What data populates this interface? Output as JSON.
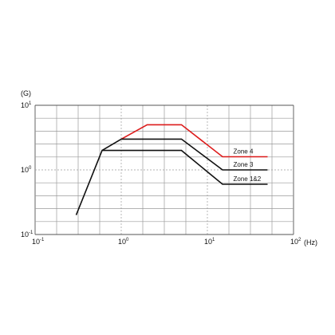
{
  "chart_data": {
    "type": "line",
    "xscale": "log",
    "yscale": "log",
    "xlim": [
      0.1,
      100
    ],
    "ylim": [
      0.1,
      10
    ],
    "grid": true,
    "ylabel": "(G)",
    "xlabel": "(Hz)",
    "x_ticks": [
      {
        "base": "10",
        "exp": "-1"
      },
      {
        "base": "10",
        "exp": "0"
      },
      {
        "base": "10",
        "exp": "1"
      },
      {
        "base": "10",
        "exp": "2"
      }
    ],
    "y_ticks": [
      {
        "base": "10",
        "exp": "-1"
      },
      {
        "base": "10",
        "exp": "0"
      },
      {
        "base": "10",
        "exp": "1"
      }
    ],
    "series": [
      {
        "name": "Zone 4",
        "color": "#dd1c1c",
        "points": [
          [
            1.0,
            3.0
          ],
          [
            2.0,
            5.0
          ],
          [
            5.0,
            5.0
          ],
          [
            15.0,
            1.6
          ],
          [
            50.0,
            1.6
          ]
        ]
      },
      {
        "name": "Zone 3",
        "color": "#111111",
        "points": [
          [
            1.0,
            3.0
          ],
          [
            5.0,
            3.0
          ],
          [
            15.0,
            1.0
          ],
          [
            50.0,
            1.0
          ]
        ]
      },
      {
        "name": "Zone 1&2",
        "color": "#111111",
        "points": [
          [
            0.3,
            0.2
          ],
          [
            0.6,
            2.0
          ],
          [
            5.0,
            2.0
          ],
          [
            15.0,
            0.6
          ],
          [
            50.0,
            0.6
          ]
        ]
      },
      {
        "name": "",
        "color": "#111111",
        "points": [
          [
            0.6,
            2.0
          ],
          [
            1.0,
            3.0
          ]
        ]
      }
    ]
  }
}
